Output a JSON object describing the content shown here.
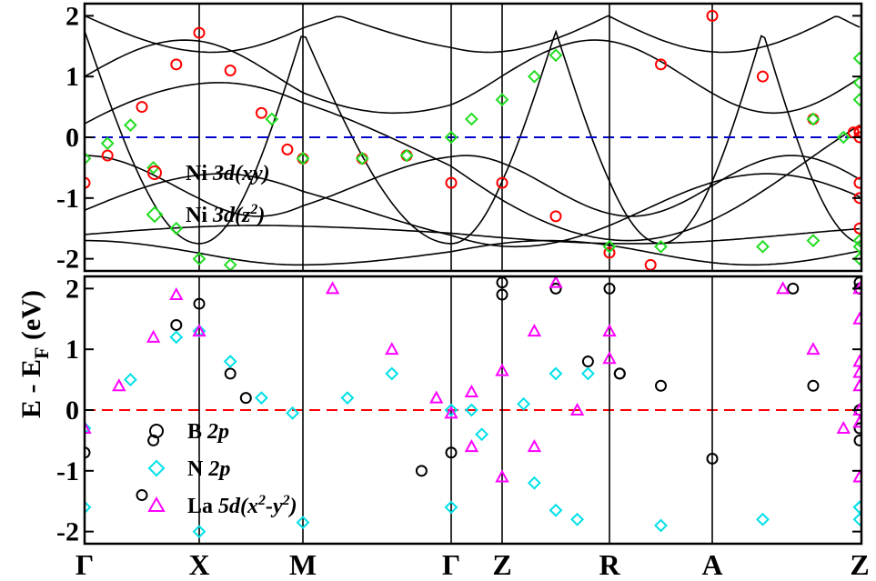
{
  "chart_data": [
    {
      "type": "line",
      "panel": "top",
      "ylabel_main": "E - E",
      "ylabel_sub": "F",
      "ylabel_unit": " (eV)",
      "ylim": [
        -2.2,
        2.2
      ],
      "yticks": [
        "2",
        "1",
        "0",
        "-1",
        "-2"
      ],
      "ytick_values": [
        2,
        1,
        0,
        -1,
        -2
      ],
      "fermi_level": 0,
      "fermi_color": "#0000cc",
      "legend": [
        {
          "marker": "circle",
          "color": "#ff0000",
          "text": "Ni",
          "orbital": "3d(xy)"
        },
        {
          "marker": "diamond",
          "color": "#22dd22",
          "text": "Ni",
          "orbital": "3d(z",
          "sup": "2",
          "tail": ")"
        }
      ],
      "legend_position": "left-middle",
      "series": [
        {
          "name": "Ni 3d(xy)",
          "color": "#ff0000",
          "marker": "circle",
          "points": [
            [
              0,
              -0.75
            ],
            [
              0.2,
              -0.3
            ],
            [
              0.5,
              0.5
            ],
            [
              0.8,
              1.2
            ],
            [
              1,
              1.72
            ],
            [
              1.3,
              1.1
            ],
            [
              1.6,
              0.4
            ],
            [
              1.85,
              -0.2
            ],
            [
              2,
              -0.35
            ],
            [
              2.4,
              -0.35
            ],
            [
              2.7,
              -0.3
            ],
            [
              3,
              -0.75
            ],
            [
              3.5,
              -0.75
            ],
            [
              4,
              -1.3
            ],
            [
              4.5,
              -1.9
            ],
            [
              4.9,
              -2.1
            ],
            [
              5,
              1.2
            ],
            [
              5.5,
              2.0
            ],
            [
              6,
              1.0
            ],
            [
              6.5,
              0.3
            ],
            [
              6.9,
              0.08
            ],
            [
              7.3,
              0.1
            ],
            [
              7.8,
              0.08
            ],
            [
              8.2,
              0.0
            ],
            [
              8.5,
              -1.5
            ],
            [
              8.8,
              -1.0
            ],
            [
              9,
              -0.75
            ]
          ]
        },
        {
          "name": "Ni 3d(z²)",
          "color": "#22dd22",
          "marker": "diamond",
          "points": [
            [
              0,
              -0.35
            ],
            [
              0.2,
              -0.1
            ],
            [
              0.4,
              0.2
            ],
            [
              0.6,
              -0.5
            ],
            [
              0.8,
              -1.5
            ],
            [
              1,
              -2.0
            ],
            [
              1.3,
              -2.1
            ],
            [
              1.7,
              0.3
            ],
            [
              2,
              -0.35
            ],
            [
              2.4,
              -0.35
            ],
            [
              2.7,
              -0.3
            ],
            [
              3,
              0.0
            ],
            [
              3.2,
              0.3
            ],
            [
              3.5,
              0.62
            ],
            [
              3.8,
              1.0
            ],
            [
              4.0,
              1.35
            ],
            [
              4.5,
              -1.8
            ],
            [
              5,
              -1.8
            ],
            [
              6,
              -1.8
            ],
            [
              6.5,
              -1.7
            ],
            [
              7,
              -1.7
            ],
            [
              8,
              -1.8
            ],
            [
              9,
              -2.0
            ],
            [
              6.5,
              0.3
            ],
            [
              6.8,
              0.0
            ],
            [
              8.2,
              1.3
            ],
            [
              8.6,
              0.9
            ],
            [
              9,
              0.62
            ]
          ]
        }
      ]
    },
    {
      "type": "line",
      "panel": "bottom",
      "ylim": [
        -2.2,
        2.2
      ],
      "yticks": [
        "2",
        "1",
        "0",
        "-1",
        "-2"
      ],
      "ytick_values": [
        2,
        1,
        0,
        -1,
        -2
      ],
      "fermi_level": 0,
      "fermi_color": "#ff0000",
      "legend": [
        {
          "marker": "circle",
          "color": "#000000",
          "text": "B",
          "orbital": "2p"
        },
        {
          "marker": "diamond",
          "color": "#00e0e8",
          "text": "N",
          "orbital": "2p"
        },
        {
          "marker": "triangle",
          "color": "#ff00ff",
          "text": "La",
          "orbital": "5d(x",
          "sup": "2",
          "mid": "-y",
          "sup2": "2",
          "tail": ")"
        }
      ],
      "legend_position": "left-bottom",
      "series": [
        {
          "name": "B 2p",
          "color": "#000000",
          "marker": "circle",
          "points": [
            [
              0,
              -0.7
            ],
            [
              0.5,
              -1.4
            ],
            [
              0.6,
              -0.5
            ],
            [
              0.8,
              1.4
            ],
            [
              1,
              1.75
            ],
            [
              1.3,
              0.6
            ],
            [
              1.45,
              0.2
            ],
            [
              2.8,
              -1.0
            ],
            [
              3,
              -0.7
            ],
            [
              3.5,
              2.1
            ],
            [
              4.0,
              2.0
            ],
            [
              4.5,
              2.0
            ],
            [
              4.6,
              0.6
            ],
            [
              5,
              0.4
            ],
            [
              5.5,
              -0.8
            ],
            [
              3.5,
              1.9
            ],
            [
              4.3,
              0.8
            ],
            [
              4.6,
              0.6
            ],
            [
              6.5,
              0.4
            ],
            [
              6.3,
              2.0
            ],
            [
              7.3,
              2.1
            ],
            [
              7.8,
              2.0
            ],
            [
              9,
              2.0
            ],
            [
              7,
              -0.5
            ],
            [
              7.5,
              -0.3
            ],
            [
              8,
              0.0
            ]
          ]
        },
        {
          "name": "N 2p",
          "color": "#00e0e8",
          "marker": "diamond",
          "points": [
            [
              0,
              -0.3
            ],
            [
              0.4,
              0.5
            ],
            [
              0.8,
              1.2
            ],
            [
              1,
              1.3
            ],
            [
              1.3,
              0.8
            ],
            [
              1.6,
              0.2
            ],
            [
              1.9,
              -0.05
            ],
            [
              2.3,
              0.2
            ],
            [
              2.6,
              0.6
            ],
            [
              3,
              0.0
            ],
            [
              3.3,
              -0.4
            ],
            [
              3.7,
              0.1
            ],
            [
              4.0,
              0.6
            ],
            [
              4.3,
              0.6
            ],
            [
              0,
              -1.6
            ],
            [
              1,
              -2.0
            ],
            [
              2,
              -1.85
            ],
            [
              3,
              -1.6
            ],
            [
              4,
              -1.65
            ],
            [
              5,
              -1.9
            ],
            [
              6,
              -1.8
            ],
            [
              7,
              -1.6
            ],
            [
              8,
              -1.8
            ],
            [
              9,
              -1.6
            ],
            [
              3.2,
              0.0
            ],
            [
              3.8,
              -1.2
            ],
            [
              4.2,
              -1.8
            ]
          ]
        },
        {
          "name": "La 5d(x²-y²)",
          "color": "#ff00ff",
          "marker": "triangle",
          "points": [
            [
              0,
              -0.3
            ],
            [
              0.3,
              0.4
            ],
            [
              0.6,
              1.2
            ],
            [
              0.8,
              1.9
            ],
            [
              1,
              1.3
            ],
            [
              2.2,
              2.0
            ],
            [
              2.6,
              1.0
            ],
            [
              2.9,
              0.2
            ],
            [
              3,
              -0.05
            ],
            [
              3.2,
              0.3
            ],
            [
              3.5,
              0.65
            ],
            [
              3.8,
              1.3
            ],
            [
              4.0,
              2.1
            ],
            [
              3.2,
              -0.6
            ],
            [
              3.5,
              -1.1
            ],
            [
              3.8,
              -0.6
            ],
            [
              4.2,
              0.0
            ],
            [
              4.5,
              0.85
            ],
            [
              4.5,
              1.3
            ],
            [
              6.2,
              2.0
            ],
            [
              6.5,
              1.0
            ],
            [
              6.8,
              -0.3
            ],
            [
              7.8,
              2.0
            ],
            [
              8.3,
              0.8
            ],
            [
              8.6,
              -0.2
            ],
            [
              9,
              -1.1
            ],
            [
              7.0,
              1.5
            ],
            [
              7.3,
              0.0
            ],
            [
              8,
              0.4
            ],
            [
              9,
              0.62
            ]
          ]
        }
      ]
    }
  ],
  "kpoints": [
    {
      "label": "Γ",
      "x": 0
    },
    {
      "label": "X",
      "x": 1
    },
    {
      "label": "M",
      "x": 2
    },
    {
      "label": "Γ",
      "x": 3
    },
    {
      "label": "Z",
      "x": 3.5
    },
    {
      "label": "R",
      "x": 4.5
    },
    {
      "label": "A",
      "x": 5.5
    },
    {
      "label": "Z",
      "x": 6.96
    }
  ],
  "colors": {
    "bands": "#000000",
    "axes": "#000000"
  }
}
